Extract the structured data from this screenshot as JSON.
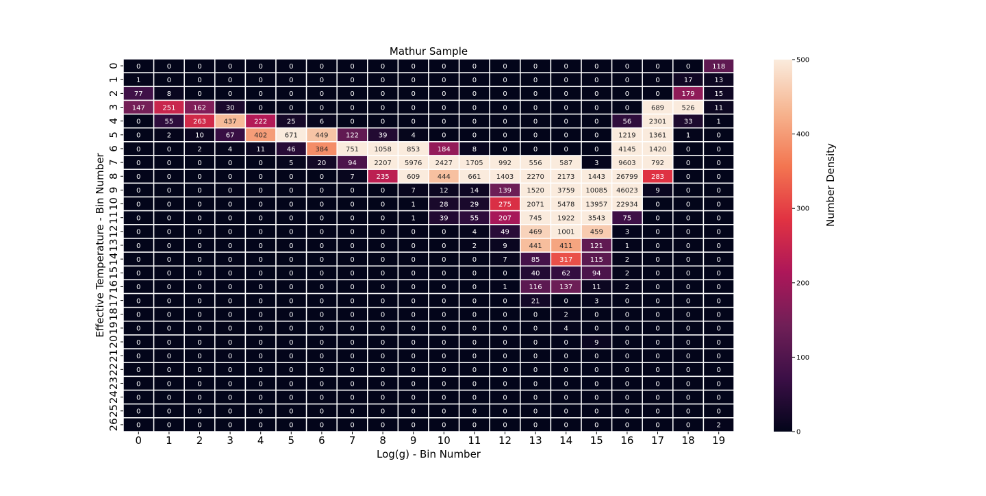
{
  "chart_data": {
    "type": "heatmap",
    "title": "Mathur Sample",
    "xlabel": "Log(g) - Bin Number",
    "ylabel": "Effective Temperature - Bin Number",
    "x_ticks": [
      "0",
      "1",
      "2",
      "3",
      "4",
      "5",
      "6",
      "7",
      "8",
      "9",
      "10",
      "11",
      "12",
      "13",
      "14",
      "15",
      "16",
      "17",
      "18",
      "19"
    ],
    "y_ticks": [
      "0",
      "1",
      "2",
      "3",
      "4",
      "5",
      "6",
      "7",
      "8",
      "9",
      "10",
      "11",
      "12",
      "13",
      "14",
      "15",
      "16",
      "17",
      "18",
      "19",
      "20",
      "21",
      "22",
      "23",
      "24",
      "25",
      "26"
    ],
    "values": [
      [
        0,
        0,
        0,
        0,
        0,
        0,
        0,
        0,
        0,
        0,
        0,
        0,
        0,
        0,
        0,
        0,
        0,
        0,
        0,
        118
      ],
      [
        1,
        0,
        0,
        0,
        0,
        0,
        0,
        0,
        0,
        0,
        0,
        0,
        0,
        0,
        0,
        0,
        0,
        0,
        17,
        13
      ],
      [
        77,
        8,
        0,
        0,
        0,
        0,
        0,
        0,
        0,
        0,
        0,
        0,
        0,
        0,
        0,
        0,
        0,
        0,
        179,
        15
      ],
      [
        147,
        251,
        162,
        30,
        0,
        0,
        0,
        0,
        0,
        0,
        0,
        0,
        0,
        0,
        0,
        0,
        0,
        689,
        526,
        11
      ],
      [
        0,
        55,
        263,
        437,
        222,
        25,
        6,
        0,
        0,
        0,
        0,
        0,
        0,
        0,
        0,
        0,
        56,
        2301,
        33,
        1
      ],
      [
        0,
        2,
        10,
        67,
        402,
        671,
        449,
        122,
        39,
        4,
        0,
        0,
        0,
        0,
        0,
        0,
        1219,
        1361,
        1,
        0
      ],
      [
        0,
        0,
        2,
        4,
        11,
        46,
        384,
        751,
        1058,
        853,
        184,
        8,
        0,
        0,
        0,
        0,
        4145,
        1420,
        0,
        0
      ],
      [
        0,
        0,
        0,
        0,
        0,
        5,
        20,
        94,
        2207,
        5976,
        2427,
        1705,
        992,
        556,
        587,
        3,
        9603,
        792,
        0,
        0
      ],
      [
        0,
        0,
        0,
        0,
        0,
        0,
        0,
        7,
        235,
        609,
        444,
        661,
        1403,
        2270,
        2173,
        1443,
        26799,
        283,
        0,
        0
      ],
      [
        0,
        0,
        0,
        0,
        0,
        0,
        0,
        0,
        0,
        7,
        12,
        14,
        139,
        1520,
        3759,
        10085,
        46023,
        9,
        0,
        0
      ],
      [
        0,
        0,
        0,
        0,
        0,
        0,
        0,
        0,
        0,
        1,
        28,
        29,
        275,
        2071,
        5478,
        13957,
        22934,
        0,
        0,
        0
      ],
      [
        0,
        0,
        0,
        0,
        0,
        0,
        0,
        0,
        0,
        1,
        39,
        55,
        207,
        745,
        1922,
        3543,
        75,
        0,
        0,
        0
      ],
      [
        0,
        0,
        0,
        0,
        0,
        0,
        0,
        0,
        0,
        0,
        0,
        4,
        49,
        469,
        1001,
        459,
        3,
        0,
        0,
        0
      ],
      [
        0,
        0,
        0,
        0,
        0,
        0,
        0,
        0,
        0,
        0,
        0,
        2,
        9,
        441,
        411,
        121,
        1,
        0,
        0,
        0
      ],
      [
        0,
        0,
        0,
        0,
        0,
        0,
        0,
        0,
        0,
        0,
        0,
        0,
        7,
        85,
        317,
        115,
        2,
        0,
        0,
        0
      ],
      [
        0,
        0,
        0,
        0,
        0,
        0,
        0,
        0,
        0,
        0,
        0,
        0,
        0,
        40,
        62,
        94,
        2,
        0,
        0,
        0
      ],
      [
        0,
        0,
        0,
        0,
        0,
        0,
        0,
        0,
        0,
        0,
        0,
        0,
        1,
        116,
        137,
        11,
        2,
        0,
        0,
        0
      ],
      [
        0,
        0,
        0,
        0,
        0,
        0,
        0,
        0,
        0,
        0,
        0,
        0,
        0,
        21,
        0,
        3,
        0,
        0,
        0,
        0
      ],
      [
        0,
        0,
        0,
        0,
        0,
        0,
        0,
        0,
        0,
        0,
        0,
        0,
        0,
        0,
        2,
        0,
        0,
        0,
        0,
        0
      ],
      [
        0,
        0,
        0,
        0,
        0,
        0,
        0,
        0,
        0,
        0,
        0,
        0,
        0,
        0,
        4,
        0,
        0,
        0,
        0,
        0
      ],
      [
        0,
        0,
        0,
        0,
        0,
        0,
        0,
        0,
        0,
        0,
        0,
        0,
        0,
        0,
        0,
        9,
        0,
        0,
        0,
        0
      ],
      [
        0,
        0,
        0,
        0,
        0,
        0,
        0,
        0,
        0,
        0,
        0,
        0,
        0,
        0,
        0,
        0,
        0,
        0,
        0,
        0
      ],
      [
        0,
        0,
        0,
        0,
        0,
        0,
        0,
        0,
        0,
        0,
        0,
        0,
        0,
        0,
        0,
        0,
        0,
        0,
        0,
        0
      ],
      [
        0,
        0,
        0,
        0,
        0,
        0,
        0,
        0,
        0,
        0,
        0,
        0,
        0,
        0,
        0,
        0,
        0,
        0,
        0,
        0
      ],
      [
        0,
        0,
        0,
        0,
        0,
        0,
        0,
        0,
        0,
        0,
        0,
        0,
        0,
        0,
        0,
        0,
        0,
        0,
        0,
        0
      ],
      [
        0,
        0,
        0,
        0,
        0,
        0,
        0,
        0,
        0,
        0,
        0,
        0,
        0,
        0,
        0,
        0,
        0,
        0,
        0,
        0
      ],
      [
        0,
        0,
        0,
        0,
        0,
        0,
        0,
        0,
        0,
        0,
        0,
        0,
        0,
        0,
        0,
        0,
        0,
        0,
        0,
        2
      ]
    ],
    "colorbar": {
      "label": "Number Density",
      "vmin": 0,
      "vmax": 500,
      "ticks": [
        0,
        100,
        200,
        300,
        400,
        500
      ],
      "tick_labels": [
        "0",
        "100",
        "200",
        "300",
        "400",
        "500"
      ],
      "colormap": "rocket",
      "colormap_stops": [
        "#03051a",
        "#3b0f46",
        "#701f57",
        "#ad1759",
        "#e13342",
        "#f37651",
        "#f6b48f",
        "#faebdd"
      ]
    },
    "grid_line_color": "#ffffff",
    "annotation_text_dark": "#262626",
    "annotation_text_light": "#ffffff"
  }
}
